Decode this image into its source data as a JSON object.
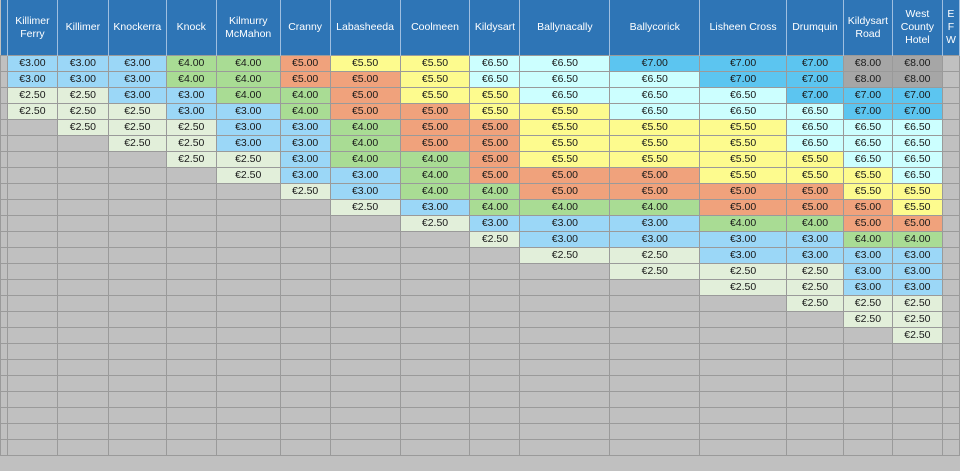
{
  "colors": {
    "header_bg": "#2e75b6",
    "grid_bg": "#c0c0c0",
    "fare_colors": {
      "€2.50": "#e2efda",
      "€3.00": "#9bd7f7",
      "€4.00": "#a9dc94",
      "€5.00": "#f0a27c",
      "€5.50": "#fdfb8e",
      "€6.50": "#ccffff",
      "€7.00": "#5cc5f0",
      "€8.00": "#a6a6a6"
    }
  },
  "columns": [
    "",
    "Killimer Ferry",
    "Killimer",
    "Knockerra",
    "Knock",
    "Kilmurry McMahon",
    "Cranny",
    "Labasheeda",
    "Coolmeen",
    "Kildysart",
    "Ballynacally",
    "Ballycorick",
    "Lisheen Cross",
    "Drumquin",
    "Kildysart Road",
    "West County Hotel",
    "E F W"
  ],
  "rows": [
    [
      "",
      "€3.00",
      "€3.00",
      "€3.00",
      "€4.00",
      "€4.00",
      "€5.00",
      "€5.50",
      "€5.50",
      "€6.50",
      "€6.50",
      "€7.00",
      "€7.00",
      "€7.00",
      "€8.00",
      "€8.00",
      ""
    ],
    [
      "",
      "€3.00",
      "€3.00",
      "€3.00",
      "€4.00",
      "€4.00",
      "€5.00",
      "€5.00",
      "€5.50",
      "€6.50",
      "€6.50",
      "€6.50",
      "€7.00",
      "€7.00",
      "€8.00",
      "€8.00",
      ""
    ],
    [
      "",
      "€2.50",
      "€2.50",
      "€3.00",
      "€3.00",
      "€4.00",
      "€4.00",
      "€5.00",
      "€5.50",
      "€5.50",
      "€6.50",
      "€6.50",
      "€6.50",
      "€7.00",
      "€7.00",
      "€7.00",
      ""
    ],
    [
      "",
      "€2.50",
      "€2.50",
      "€2.50",
      "€3.00",
      "€3.00",
      "€4.00",
      "€5.00",
      "€5.00",
      "€5.50",
      "€5.50",
      "€6.50",
      "€6.50",
      "€6.50",
      "€7.00",
      "€7.00",
      ""
    ],
    [
      "",
      "",
      "€2.50",
      "€2.50",
      "€2.50",
      "€3.00",
      "€3.00",
      "€4.00",
      "€5.00",
      "€5.00",
      "€5.50",
      "€5.50",
      "€5.50",
      "€6.50",
      "€6.50",
      "€6.50",
      ""
    ],
    [
      "",
      "",
      "",
      "€2.50",
      "€2.50",
      "€3.00",
      "€3.00",
      "€4.00",
      "€5.00",
      "€5.00",
      "€5.50",
      "€5.50",
      "€5.50",
      "€6.50",
      "€6.50",
      "€6.50",
      ""
    ],
    [
      "",
      "",
      "",
      "",
      "€2.50",
      "€2.50",
      "€3.00",
      "€4.00",
      "€4.00",
      "€5.00",
      "€5.50",
      "€5.50",
      "€5.50",
      "€5.50",
      "€6.50",
      "€6.50",
      ""
    ],
    [
      "",
      "",
      "",
      "",
      "",
      "€2.50",
      "€3.00",
      "€3.00",
      "€4.00",
      "€5.00",
      "€5.00",
      "€5.00",
      "€5.50",
      "€5.50",
      "€5.50",
      "€6.50",
      ""
    ],
    [
      "",
      "",
      "",
      "",
      "",
      "",
      "€2.50",
      "€3.00",
      "€4.00",
      "€4.00",
      "€5.00",
      "€5.00",
      "€5.00",
      "€5.00",
      "€5.50",
      "€5.50",
      ""
    ],
    [
      "",
      "",
      "",
      "",
      "",
      "",
      "",
      "€2.50",
      "€3.00",
      "€4.00",
      "€4.00",
      "€4.00",
      "€5.00",
      "€5.00",
      "€5.00",
      "€5.50",
      ""
    ],
    [
      "",
      "",
      "",
      "",
      "",
      "",
      "",
      "",
      "€2.50",
      "€3.00",
      "€3.00",
      "€3.00",
      "€4.00",
      "€4.00",
      "€5.00",
      "€5.00",
      ""
    ],
    [
      "",
      "",
      "",
      "",
      "",
      "",
      "",
      "",
      "",
      "€2.50",
      "€3.00",
      "€3.00",
      "€3.00",
      "€3.00",
      "€4.00",
      "€4.00",
      ""
    ],
    [
      "",
      "",
      "",
      "",
      "",
      "",
      "",
      "",
      "",
      "",
      "€2.50",
      "€2.50",
      "€3.00",
      "€3.00",
      "€3.00",
      "€3.00",
      ""
    ],
    [
      "",
      "",
      "",
      "",
      "",
      "",
      "",
      "",
      "",
      "",
      "",
      "€2.50",
      "€2.50",
      "€2.50",
      "€3.00",
      "€3.00",
      ""
    ],
    [
      "",
      "",
      "",
      "",
      "",
      "",
      "",
      "",
      "",
      "",
      "",
      "",
      "€2.50",
      "€2.50",
      "€3.00",
      "€3.00",
      ""
    ],
    [
      "",
      "",
      "",
      "",
      "",
      "",
      "",
      "",
      "",
      "",
      "",
      "",
      "",
      "€2.50",
      "€2.50",
      "€2.50",
      ""
    ],
    [
      "",
      "",
      "",
      "",
      "",
      "",
      "",
      "",
      "",
      "",
      "",
      "",
      "",
      "",
      "€2.50",
      "€2.50",
      ""
    ],
    [
      "",
      "",
      "",
      "",
      "",
      "",
      "",
      "",
      "",
      "",
      "",
      "",
      "",
      "",
      "",
      "€2.50",
      ""
    ],
    [
      "",
      "",
      "",
      "",
      "",
      "",
      "",
      "",
      "",
      "",
      "",
      "",
      "",
      "",
      "",
      "",
      ""
    ],
    [
      "",
      "",
      "",
      "",
      "",
      "",
      "",
      "",
      "",
      "",
      "",
      "",
      "",
      "",
      "",
      "",
      ""
    ],
    [
      "",
      "",
      "",
      "",
      "",
      "",
      "",
      "",
      "",
      "",
      "",
      "",
      "",
      "",
      "",
      "",
      ""
    ],
    [
      "",
      "",
      "",
      "",
      "",
      "",
      "",
      "",
      "",
      "",
      "",
      "",
      "",
      "",
      "",
      "",
      ""
    ],
    [
      "",
      "",
      "",
      "",
      "",
      "",
      "",
      "",
      "",
      "",
      "",
      "",
      "",
      "",
      "",
      "",
      ""
    ],
    [
      "",
      "",
      "",
      "",
      "",
      "",
      "",
      "",
      "",
      "",
      "",
      "",
      "",
      "",
      "",
      "",
      ""
    ],
    [
      "",
      "",
      "",
      "",
      "",
      "",
      "",
      "",
      "",
      "",
      "",
      "",
      "",
      "",
      "",
      "",
      ""
    ]
  ]
}
